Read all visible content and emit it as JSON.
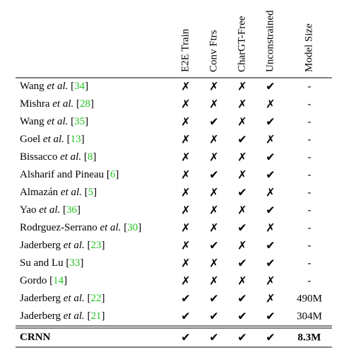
{
  "table": {
    "header": [
      "E2E Train",
      "Conv Ftrs",
      "CharGT-Free",
      "Unconstrained",
      "Model Size"
    ],
    "rows": [
      {
        "method": [
          {
            "text": "Wang "
          },
          {
            "text": "et al.",
            "style": "italic"
          },
          {
            "text": " ["
          },
          {
            "text": "34",
            "style": "cite"
          },
          {
            "text": "]"
          }
        ],
        "cells": [
          "✗",
          "✗",
          "✗",
          "✔"
        ],
        "size": "-"
      },
      {
        "method": [
          {
            "text": "Mishra "
          },
          {
            "text": "et al.",
            "style": "italic"
          },
          {
            "text": " ["
          },
          {
            "text": "28",
            "style": "cite"
          },
          {
            "text": "]"
          }
        ],
        "cells": [
          "✗",
          "✗",
          "✗",
          "✗"
        ],
        "size": "-"
      },
      {
        "method": [
          {
            "text": "Wang "
          },
          {
            "text": "et al.",
            "style": "italic"
          },
          {
            "text": " ["
          },
          {
            "text": "35",
            "style": "cite"
          },
          {
            "text": "]"
          }
        ],
        "cells": [
          "✗",
          "✔",
          "✗",
          "✔"
        ],
        "size": "-"
      },
      {
        "method": [
          {
            "text": "Goel "
          },
          {
            "text": "et al.",
            "style": "italic"
          },
          {
            "text": " ["
          },
          {
            "text": "13",
            "style": "cite"
          },
          {
            "text": "]"
          }
        ],
        "cells": [
          "✗",
          "✗",
          "✔",
          "✗"
        ],
        "size": "-"
      },
      {
        "method": [
          {
            "text": "Bissacco "
          },
          {
            "text": "et al.",
            "style": "italic"
          },
          {
            "text": " ["
          },
          {
            "text": "8",
            "style": "cite"
          },
          {
            "text": "]"
          }
        ],
        "cells": [
          "✗",
          "✗",
          "✗",
          "✔"
        ],
        "size": "-"
      },
      {
        "method": [
          {
            "text": "Alsharif and Pineau ["
          },
          {
            "text": "6",
            "style": "cite"
          },
          {
            "text": "]"
          }
        ],
        "cells": [
          "✗",
          "✔",
          "✗",
          "✔"
        ],
        "size": "-"
      },
      {
        "method": [
          {
            "text": "Almazán "
          },
          {
            "text": "et al.",
            "style": "italic"
          },
          {
            "text": " ["
          },
          {
            "text": "5",
            "style": "cite"
          },
          {
            "text": "]"
          }
        ],
        "cells": [
          "✗",
          "✗",
          "✔",
          "✗"
        ],
        "size": "-"
      },
      {
        "method": [
          {
            "text": "Yao "
          },
          {
            "text": "et al.",
            "style": "italic"
          },
          {
            "text": " ["
          },
          {
            "text": "36",
            "style": "cite"
          },
          {
            "text": "]"
          }
        ],
        "cells": [
          "✗",
          "✗",
          "✗",
          "✔"
        ],
        "size": "-"
      },
      {
        "method": [
          {
            "text": "Rodrguez-Serrano "
          },
          {
            "text": "et al.",
            "style": "italic"
          },
          {
            "text": " ["
          },
          {
            "text": "30",
            "style": "cite"
          },
          {
            "text": "]"
          }
        ],
        "cells": [
          "✗",
          "✗",
          "✔",
          "✗"
        ],
        "size": "-"
      },
      {
        "method": [
          {
            "text": "Jaderberg "
          },
          {
            "text": "et al.",
            "style": "italic"
          },
          {
            "text": " ["
          },
          {
            "text": "23",
            "style": "cite"
          },
          {
            "text": "]"
          }
        ],
        "cells": [
          "✗",
          "✔",
          "✗",
          "✔"
        ],
        "size": "-"
      },
      {
        "method": [
          {
            "text": "Su and Lu ["
          },
          {
            "text": "33",
            "style": "cite"
          },
          {
            "text": "]"
          }
        ],
        "cells": [
          "✗",
          "✗",
          "✔",
          "✔"
        ],
        "size": "-"
      },
      {
        "method": [
          {
            "text": "Gordo ["
          },
          {
            "text": "14",
            "style": "cite"
          },
          {
            "text": "]"
          }
        ],
        "cells": [
          "✗",
          "✗",
          "✗",
          "✗"
        ],
        "size": "-"
      },
      {
        "method": [
          {
            "text": "Jaderberg "
          },
          {
            "text": "et al.",
            "style": "italic"
          },
          {
            "text": " ["
          },
          {
            "text": "22",
            "style": "cite"
          },
          {
            "text": "]"
          }
        ],
        "cells": [
          "✔",
          "✔",
          "✔",
          "✗"
        ],
        "size": "490M"
      },
      {
        "method": [
          {
            "text": "Jaderberg "
          },
          {
            "text": "et al.",
            "style": "italic"
          },
          {
            "text": " ["
          },
          {
            "text": "21",
            "style": "cite"
          },
          {
            "text": "]"
          }
        ],
        "cells": [
          "✔",
          "✔",
          "✔",
          "✔"
        ],
        "size": "304M"
      },
      {
        "method": [
          {
            "text": "CRNN"
          }
        ],
        "cells": [
          "✔",
          "✔",
          "✔",
          "✔"
        ],
        "size": "8.3M",
        "bold": true
      }
    ]
  }
}
